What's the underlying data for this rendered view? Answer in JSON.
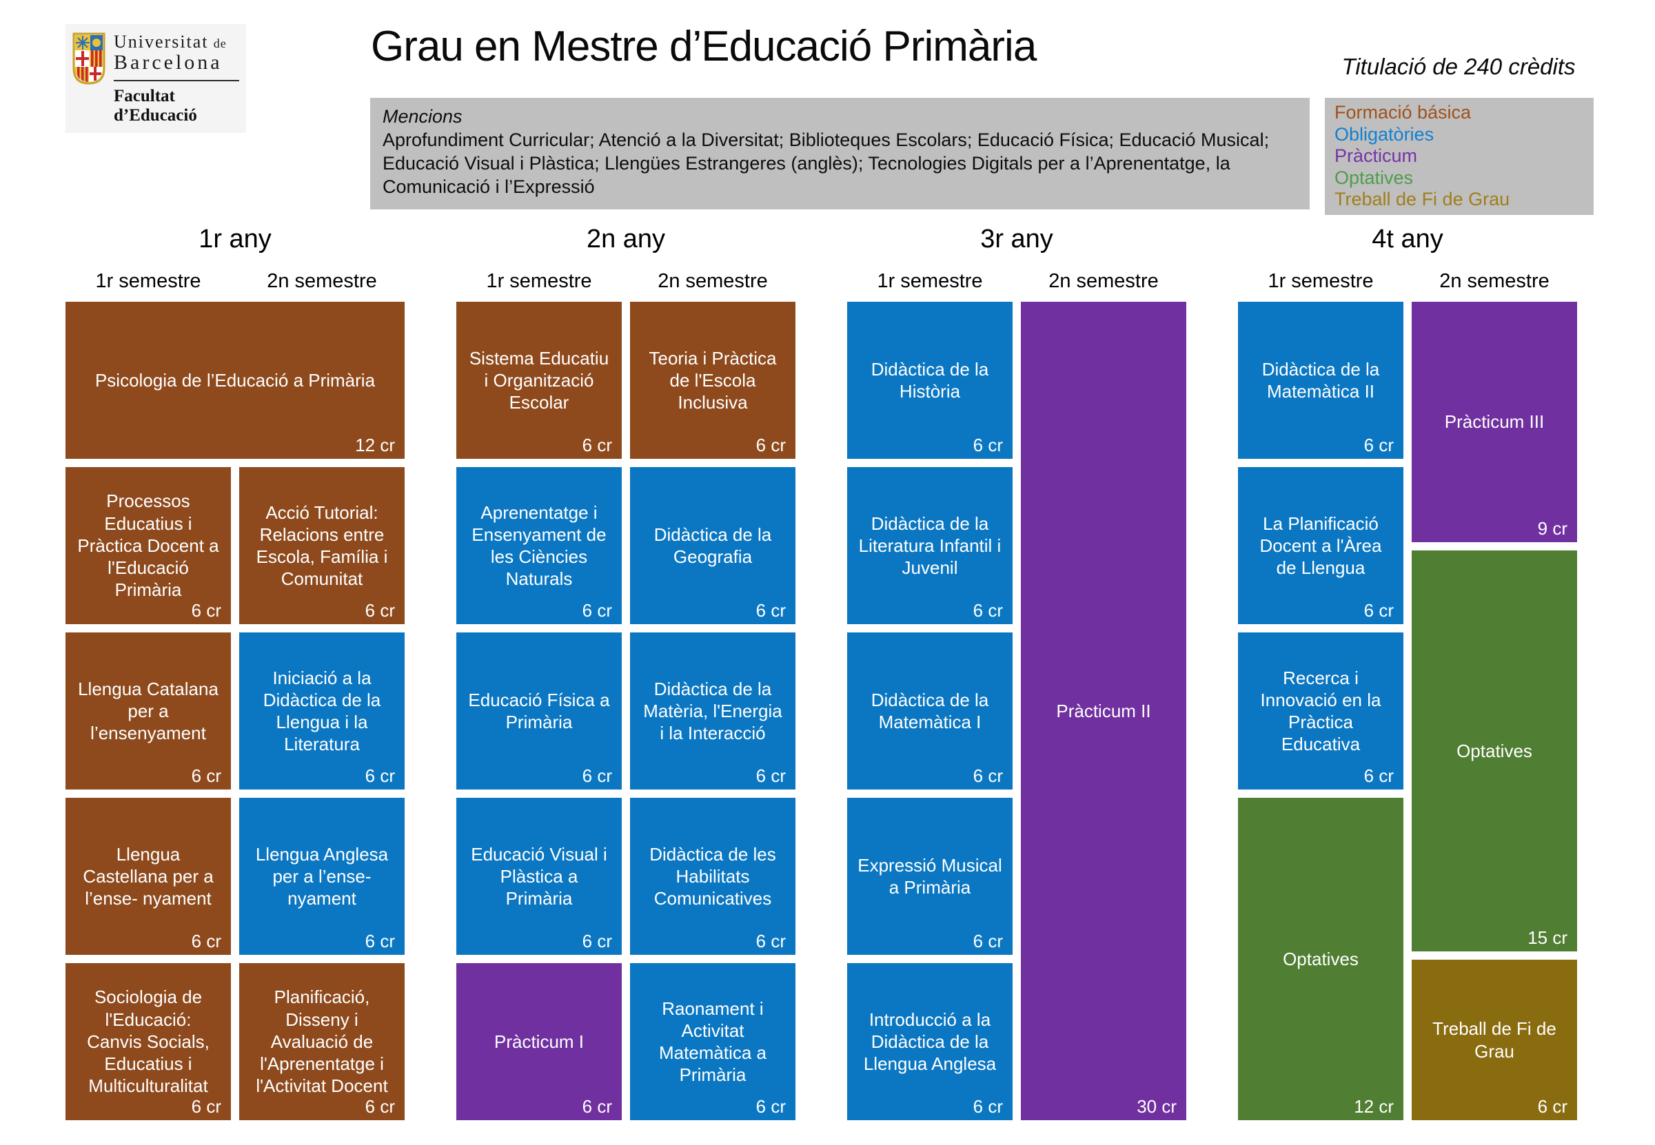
{
  "logo": {
    "institution_line1": "Universitat",
    "institution_sep": "de",
    "institution_line2": "Barcelona",
    "faculty": "Facultat d’Educació"
  },
  "header": {
    "title": "Grau en Mestre d’Educació Primària",
    "credits_note": "Titulació de 240 crèdits"
  },
  "mencions": {
    "label": "Mencions",
    "text": "Aprofundiment Curricular; Atenció a la Diversitat; Biblioteques Escolars; Educació Física; Educació Musical; Educació Visual i Plàstica; Llengües Estrangeres (anglès); Tecnologies Digitals per a l’Aprenentatge, la Comunicació i l’Expressió"
  },
  "legend": {
    "items": [
      {
        "label": "Formació básica",
        "type": "basica",
        "text_color": "#a0511e"
      },
      {
        "label": "Obligatòries",
        "type": "obligatories",
        "text_color": "#1180d2"
      },
      {
        "label": "Pràcticum",
        "type": "practicum",
        "text_color": "#7733a8"
      },
      {
        "label": "Optatives",
        "type": "optatives",
        "text_color": "#4f9c4b"
      },
      {
        "label": "Treball de Fi de Grau",
        "type": "tfg",
        "text_color": "#9f7e1c"
      }
    ]
  },
  "block_colors": {
    "basica": "#8e4a1d",
    "obligatories": "#0b77c2",
    "practicum": "#7030a0",
    "optatives": "#507e33",
    "tfg": "#8a6c10"
  },
  "years": [
    {
      "label": "1r any",
      "semesters": [
        "1r semestre",
        "2n semestre"
      ]
    },
    {
      "label": "2n any",
      "semesters": [
        "1r semestre",
        "2n semestre"
      ]
    },
    {
      "label": "3r any",
      "semesters": [
        "1r semestre",
        "2n semestre"
      ]
    },
    {
      "label": "4t any",
      "semesters": [
        "1r semestre",
        "2n semestre"
      ]
    }
  ],
  "courses": [
    {
      "name": "Psicologia de l’Educació a Primària",
      "credits": "12 cr",
      "type": "basica",
      "year": 0,
      "sem": 0,
      "row": 0,
      "colspan": 2
    },
    {
      "name": "Processos Educatius i Pràctica Docent a l'Educació Primària",
      "credits": "6 cr",
      "type": "basica",
      "year": 0,
      "sem": 0,
      "row": 1
    },
    {
      "name": "Acció Tutorial: Relacions entre Escola, Família i Comunitat",
      "credits": "6 cr",
      "type": "basica",
      "year": 0,
      "sem": 1,
      "row": 1
    },
    {
      "name": "Llengua Catalana per a l’ensenyament",
      "credits": "6 cr",
      "type": "basica",
      "year": 0,
      "sem": 0,
      "row": 2
    },
    {
      "name": "Iniciació a la Didàctica de la Llengua i la Literatura",
      "credits": "6 cr",
      "type": "obligatories",
      "year": 0,
      "sem": 1,
      "row": 2
    },
    {
      "name": "Llengua Castellana per a l’ense- nyament",
      "credits": "6 cr",
      "type": "basica",
      "year": 0,
      "sem": 0,
      "row": 3
    },
    {
      "name": "Llengua Anglesa per a l’ense- nyament",
      "credits": "6 cr",
      "type": "obligatories",
      "year": 0,
      "sem": 1,
      "row": 3
    },
    {
      "name": "Sociologia de l'Educació: Canvis Socials, Educatius i Multiculturalitat",
      "credits": "6 cr",
      "type": "basica",
      "year": 0,
      "sem": 0,
      "row": 4
    },
    {
      "name": "Planificació, Disseny i Avaluació de l'Aprenentatge i l'Activitat Docent",
      "credits": "6 cr",
      "type": "basica",
      "year": 0,
      "sem": 1,
      "row": 4
    },
    {
      "name": "Sistema Educatiu i Organització Escolar",
      "credits": "6 cr",
      "type": "basica",
      "year": 1,
      "sem": 0,
      "row": 0
    },
    {
      "name": "Teoria i Pràctica de l'Escola Inclusiva",
      "credits": "6 cr",
      "type": "basica",
      "year": 1,
      "sem": 1,
      "row": 0
    },
    {
      "name": "Aprenentatge i Ensenyament de les Ciències Naturals",
      "credits": "6 cr",
      "type": "obligatories",
      "year": 1,
      "sem": 0,
      "row": 1
    },
    {
      "name": "Didàctica de la Geografia",
      "credits": "6 cr",
      "type": "obligatories",
      "year": 1,
      "sem": 1,
      "row": 1
    },
    {
      "name": "Educació Física a Primària",
      "credits": "6 cr",
      "type": "obligatories",
      "year": 1,
      "sem": 0,
      "row": 2
    },
    {
      "name": "Didàctica de la Matèria, l'Energia i la Interacció",
      "credits": "6 cr",
      "type": "obligatories",
      "year": 1,
      "sem": 1,
      "row": 2
    },
    {
      "name": "Educació Visual i Plàstica a Primària",
      "credits": "6 cr",
      "type": "obligatories",
      "year": 1,
      "sem": 0,
      "row": 3
    },
    {
      "name": "Didàctica de les Habilitats Comunicatives",
      "credits": "6 cr",
      "type": "obligatories",
      "year": 1,
      "sem": 1,
      "row": 3
    },
    {
      "name": "Pràcticum I",
      "credits": "6 cr",
      "type": "practicum",
      "year": 1,
      "sem": 0,
      "row": 4
    },
    {
      "name": "Raonament i Activitat Matemàtica a Primària",
      "credits": "6 cr",
      "type": "obligatories",
      "year": 1,
      "sem": 1,
      "row": 4
    },
    {
      "name": "Didàctica de la Història",
      "credits": "6 cr",
      "type": "obligatories",
      "year": 2,
      "sem": 0,
      "row": 0
    },
    {
      "name": "Didàctica de la Literatura Infantil i Juvenil",
      "credits": "6 cr",
      "type": "obligatories",
      "year": 2,
      "sem": 0,
      "row": 1
    },
    {
      "name": "Didàctica de la Matemàtica I",
      "credits": "6 cr",
      "type": "obligatories",
      "year": 2,
      "sem": 0,
      "row": 2
    },
    {
      "name": "Expressió Musical a Primària",
      "credits": "6 cr",
      "type": "obligatories",
      "year": 2,
      "sem": 0,
      "row": 3
    },
    {
      "name": "Introducció a la Didàctica de la Llengua Anglesa",
      "credits": "6 cr",
      "type": "obligatories",
      "year": 2,
      "sem": 0,
      "row": 4
    },
    {
      "name": "Pràcticum II",
      "credits": "30 cr",
      "type": "practicum",
      "year": 2,
      "sem": 1,
      "row": 0,
      "rowspan": 5
    },
    {
      "name": "Didàctica de la Matemàtica II",
      "credits": "6 cr",
      "type": "obligatories",
      "year": 3,
      "sem": 0,
      "row": 0
    },
    {
      "name": "La Planificació Docent a l'Àrea de Llengua",
      "credits": "6 cr",
      "type": "obligatories",
      "year": 3,
      "sem": 0,
      "row": 1
    },
    {
      "name": "Recerca i Innovació en la Pràctica Educativa",
      "credits": "6 cr",
      "type": "obligatories",
      "year": 3,
      "sem": 0,
      "row": 2
    },
    {
      "name": "Optatives",
      "credits": "12 cr",
      "type": "optatives",
      "year": 3,
      "sem": 0,
      "row": 3,
      "rowspan": 2
    },
    {
      "name": "Pràcticum III",
      "credits": "9 cr",
      "type": "practicum",
      "year": 3,
      "sem": 1,
      "stack": true,
      "units": 9
    },
    {
      "name": "Optatives",
      "credits": "15 cr",
      "type": "optatives",
      "year": 3,
      "sem": 1,
      "stack": true,
      "units": 15
    },
    {
      "name": "Treball de Fi de Grau",
      "credits": "6 cr",
      "type": "tfg",
      "year": 3,
      "sem": 1,
      "stack": true,
      "units": 6
    }
  ]
}
